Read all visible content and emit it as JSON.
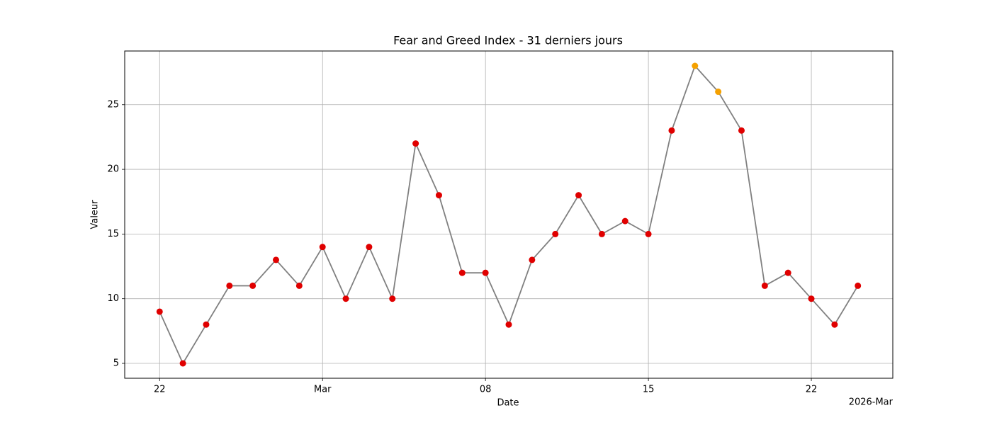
{
  "chart_data": {
    "type": "line",
    "title": "Fear and Greed Index - 31 derniers jours",
    "xlabel": "Date",
    "ylabel": "Valeur",
    "x_offset_label": "2026-Mar",
    "x": [
      "2026-02-22",
      "2026-02-23",
      "2026-02-24",
      "2026-02-25",
      "2026-02-26",
      "2026-02-27",
      "2026-02-28",
      "2026-03-01",
      "2026-03-02",
      "2026-03-03",
      "2026-03-04",
      "2026-03-05",
      "2026-03-06",
      "2026-03-07",
      "2026-03-08",
      "2026-03-09",
      "2026-03-10",
      "2026-03-11",
      "2026-03-12",
      "2026-03-13",
      "2026-03-14",
      "2026-03-15",
      "2026-03-16",
      "2026-03-17",
      "2026-03-18",
      "2026-03-19",
      "2026-03-20",
      "2026-03-21",
      "2026-03-22",
      "2026-03-23",
      "2026-03-24"
    ],
    "series": [
      {
        "color": "#808080",
        "values": [
          9,
          5,
          8,
          11,
          11,
          13,
          11,
          14,
          10,
          14,
          10,
          22,
          18,
          12,
          12,
          8,
          13,
          15,
          18,
          15,
          16,
          15,
          23,
          28,
          26,
          23,
          11,
          12,
          10,
          8,
          11
        ],
        "marker_colors": [
          "#e00000",
          "#e00000",
          "#e00000",
          "#e00000",
          "#e00000",
          "#e00000",
          "#e00000",
          "#e00000",
          "#e00000",
          "#e00000",
          "#e00000",
          "#e00000",
          "#e00000",
          "#e00000",
          "#e00000",
          "#e00000",
          "#e00000",
          "#e00000",
          "#e00000",
          "#e00000",
          "#e00000",
          "#e00000",
          "#e00000",
          "#f5a100",
          "#f5a100",
          "#e00000",
          "#e00000",
          "#e00000",
          "#e00000",
          "#e00000",
          "#e00000"
        ]
      }
    ],
    "xlim": [
      "2026-02-20T12:00:00Z",
      "2026-03-25T12:00:00Z"
    ],
    "xticks": [
      {
        "value": "2026-02-22",
        "label": "22"
      },
      {
        "value": "2026-03-01",
        "label": "Mar"
      },
      {
        "value": "2026-03-08",
        "label": "08"
      },
      {
        "value": "2026-03-15",
        "label": "15"
      },
      {
        "value": "2026-03-22",
        "label": "22"
      }
    ],
    "ylim": [
      3.85,
      29.15
    ],
    "yticks": [
      5,
      10,
      15,
      20,
      25
    ],
    "grid": true
  }
}
